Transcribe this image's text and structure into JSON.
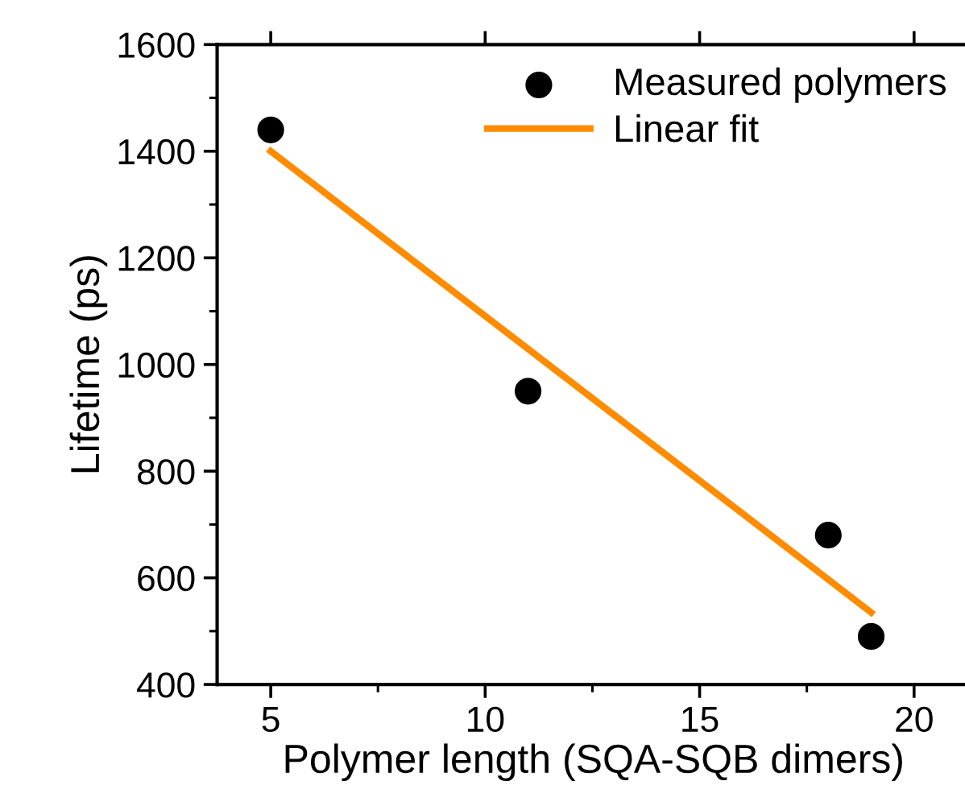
{
  "chart_data": {
    "type": "scatter",
    "xlabel": "Polymer length (SQA-SQB dimers)",
    "ylabel": "Lifetime (ps)",
    "xlim": [
      3.75,
      21.3
    ],
    "xticks": [
      5,
      10,
      15,
      20
    ],
    "ylim": [
      400,
      1600
    ],
    "yticks": [
      400,
      600,
      800,
      1000,
      1200,
      1400,
      1600
    ],
    "grid": false,
    "legend": "top right",
    "series": [
      {
        "name": "Measured polymers",
        "color": "#000000",
        "marker": "circle",
        "x": [
          5,
          11,
          18,
          19
        ],
        "values": [
          1440,
          950,
          680,
          490
        ]
      },
      {
        "name": "Linear fit",
        "type": "line",
        "color": "#ff8c00",
        "line_style": "solid",
        "marker": "none",
        "x": [
          5,
          19
        ],
        "values": [
          1400,
          535
        ]
      }
    ]
  }
}
